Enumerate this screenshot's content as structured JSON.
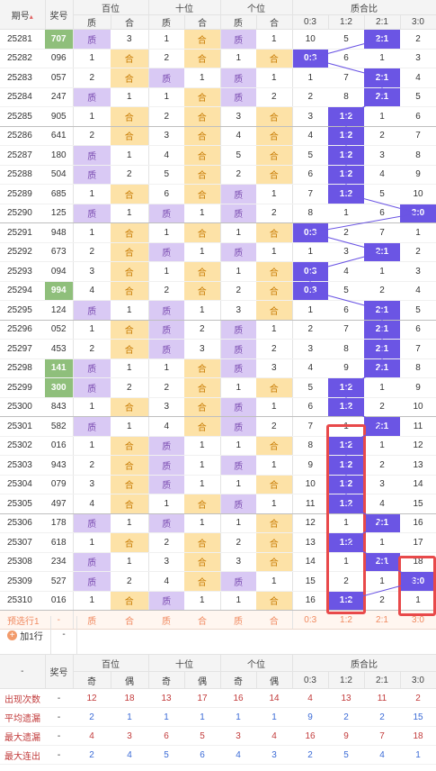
{
  "header": {
    "period_label": "期号",
    "sort_icon": "sort-arrows-icon",
    "prize_label": "奖号",
    "groups": [
      "百位",
      "十位",
      "个位",
      "质合比"
    ],
    "sub_labels": [
      "质",
      "合",
      "质",
      "合",
      "质",
      "合",
      "0:3",
      "1:2",
      "2:1",
      "3:0"
    ]
  },
  "rows": [
    {
      "issue": "25281",
      "num": "707",
      "win": true,
      "b": [
        0,
        3
      ],
      "s": [
        1,
        0
      ],
      "g": [
        0,
        1
      ],
      "z": [
        10,
        5,
        0,
        2
      ],
      "q": 2,
      "qt": "2:1"
    },
    {
      "issue": "25282",
      "num": "096",
      "win": false,
      "b": [
        1,
        0
      ],
      "s": [
        2,
        0
      ],
      "g": [
        1,
        0
      ],
      "z": [
        0,
        6,
        1,
        3
      ],
      "q": 0,
      "qt": "0:3"
    },
    {
      "issue": "25283",
      "num": "057",
      "win": false,
      "b": [
        2,
        0
      ],
      "s": [
        0,
        1
      ],
      "g": [
        0,
        1
      ],
      "z": [
        1,
        7,
        0,
        4
      ],
      "q": 2,
      "qt": "2:1"
    },
    {
      "issue": "25284",
      "num": "247",
      "win": false,
      "b": [
        0,
        1
      ],
      "s": [
        1,
        0
      ],
      "g": [
        0,
        2
      ],
      "z": [
        2,
        8,
        0,
        5
      ],
      "q": 2,
      "qt": "2:1"
    },
    {
      "issue": "25285",
      "num": "905",
      "win": false,
      "b": [
        1,
        0
      ],
      "s": [
        2,
        0
      ],
      "g": [
        3,
        0
      ],
      "z": [
        3,
        0,
        1,
        6
      ],
      "q": 1,
      "qt": "1:2"
    },
    {
      "issue": "25286",
      "num": "641",
      "win": false,
      "b": [
        2,
        0
      ],
      "s": [
        3,
        0
      ],
      "g": [
        4,
        0
      ],
      "z": [
        4,
        0,
        2,
        7
      ],
      "q": 1,
      "qt": "1:2"
    },
    {
      "issue": "25287",
      "num": "180",
      "win": false,
      "b": [
        0,
        1
      ],
      "s": [
        4,
        0
      ],
      "g": [
        5,
        0
      ],
      "z": [
        5,
        0,
        3,
        8
      ],
      "q": 1,
      "qt": "1:2"
    },
    {
      "issue": "25288",
      "num": "504",
      "win": false,
      "b": [
        0,
        2
      ],
      "s": [
        5,
        0
      ],
      "g": [
        2,
        0
      ],
      "z": [
        6,
        0,
        4,
        9
      ],
      "q": 1,
      "qt": "1:2"
    },
    {
      "issue": "25289",
      "num": "685",
      "win": false,
      "b": [
        1,
        0
      ],
      "s": [
        6,
        0
      ],
      "g": [
        0,
        1
      ],
      "z": [
        7,
        0,
        5,
        10
      ],
      "q": 1,
      "qt": "1:2"
    },
    {
      "issue": "25290",
      "num": "125",
      "win": false,
      "b": [
        0,
        1
      ],
      "s": [
        0,
        1
      ],
      "g": [
        0,
        2
      ],
      "z": [
        8,
        1,
        6,
        0
      ],
      "q": 3,
      "qt": "3:0"
    },
    {
      "issue": "25291",
      "num": "948",
      "win": false,
      "b": [
        1,
        0
      ],
      "s": [
        1,
        0
      ],
      "g": [
        1,
        0
      ],
      "z": [
        0,
        2,
        7,
        1
      ],
      "q": 0,
      "qt": "0:3"
    },
    {
      "issue": "25292",
      "num": "673",
      "win": false,
      "b": [
        2,
        0
      ],
      "s": [
        0,
        1
      ],
      "g": [
        0,
        1
      ],
      "z": [
        1,
        3,
        0,
        2
      ],
      "q": 2,
      "qt": "2:1"
    },
    {
      "issue": "25293",
      "num": "094",
      "win": false,
      "b": [
        3,
        0
      ],
      "s": [
        1,
        0
      ],
      "g": [
        1,
        0
      ],
      "z": [
        0,
        4,
        1,
        3
      ],
      "q": 0,
      "qt": "0:3"
    },
    {
      "issue": "25294",
      "num": "994",
      "win": true,
      "b": [
        4,
        0
      ],
      "s": [
        2,
        0
      ],
      "g": [
        2,
        0
      ],
      "z": [
        0,
        5,
        2,
        4
      ],
      "q": 0,
      "qt": "0:3"
    },
    {
      "issue": "25295",
      "num": "124",
      "win": false,
      "b": [
        0,
        1
      ],
      "s": [
        0,
        1
      ],
      "g": [
        3,
        0
      ],
      "z": [
        1,
        6,
        0,
        5
      ],
      "q": 2,
      "qt": "2:1"
    },
    {
      "issue": "25296",
      "num": "052",
      "win": false,
      "b": [
        1,
        0
      ],
      "s": [
        0,
        2
      ],
      "g": [
        0,
        1
      ],
      "z": [
        2,
        7,
        0,
        6
      ],
      "q": 2,
      "qt": "2:1"
    },
    {
      "issue": "25297",
      "num": "453",
      "win": false,
      "b": [
        2,
        0
      ],
      "s": [
        0,
        3
      ],
      "g": [
        0,
        2
      ],
      "z": [
        3,
        8,
        0,
        7
      ],
      "q": 2,
      "qt": "2:1"
    },
    {
      "issue": "25298",
      "num": "141",
      "win": true,
      "b": [
        0,
        1
      ],
      "s": [
        1,
        0
      ],
      "g": [
        0,
        3
      ],
      "z": [
        4,
        9,
        0,
        8
      ],
      "q": 2,
      "qt": "2:1"
    },
    {
      "issue": "25299",
      "num": "300",
      "win": true,
      "b": [
        0,
        2
      ],
      "s": [
        2,
        0
      ],
      "g": [
        1,
        0
      ],
      "z": [
        5,
        0,
        1,
        9
      ],
      "q": 1,
      "qt": "1:2"
    },
    {
      "issue": "25300",
      "num": "843",
      "win": false,
      "b": [
        1,
        0
      ],
      "s": [
        3,
        0
      ],
      "g": [
        0,
        1
      ],
      "z": [
        6,
        0,
        2,
        10
      ],
      "q": 1,
      "qt": "1:2"
    },
    {
      "issue": "25301",
      "num": "582",
      "win": false,
      "b": [
        0,
        1
      ],
      "s": [
        4,
        0
      ],
      "g": [
        0,
        2
      ],
      "z": [
        7,
        1,
        0,
        11
      ],
      "q": 2,
      "qt": "2:1"
    },
    {
      "issue": "25302",
      "num": "016",
      "win": false,
      "b": [
        1,
        0
      ],
      "s": [
        0,
        1
      ],
      "g": [
        1,
        0
      ],
      "z": [
        8,
        0,
        1,
        12
      ],
      "q": 1,
      "qt": "1:2"
    },
    {
      "issue": "25303",
      "num": "943",
      "win": false,
      "b": [
        2,
        0
      ],
      "s": [
        0,
        1
      ],
      "g": [
        0,
        1
      ],
      "z": [
        9,
        0,
        2,
        13
      ],
      "q": 1,
      "qt": "1:2"
    },
    {
      "issue": "25304",
      "num": "079",
      "win": false,
      "b": [
        3,
        0
      ],
      "s": [
        0,
        1
      ],
      "g": [
        1,
        0
      ],
      "z": [
        10,
        0,
        3,
        14
      ],
      "q": 1,
      "qt": "1:2"
    },
    {
      "issue": "25305",
      "num": "497",
      "win": false,
      "b": [
        4,
        0
      ],
      "s": [
        1,
        0
      ],
      "g": [
        0,
        1
      ],
      "z": [
        11,
        0,
        4,
        15
      ],
      "q": 1,
      "qt": "1:2"
    },
    {
      "issue": "25306",
      "num": "178",
      "win": false,
      "b": [
        0,
        1
      ],
      "s": [
        0,
        1
      ],
      "g": [
        1,
        0
      ],
      "z": [
        12,
        1,
        0,
        16
      ],
      "q": 2,
      "qt": "2:1"
    },
    {
      "issue": "25307",
      "num": "618",
      "win": false,
      "b": [
        1,
        0
      ],
      "s": [
        2,
        0
      ],
      "g": [
        2,
        0
      ],
      "z": [
        13,
        0,
        1,
        17
      ],
      "q": 1,
      "qt": "1:2"
    },
    {
      "issue": "25308",
      "num": "234",
      "win": false,
      "b": [
        0,
        1
      ],
      "s": [
        3,
        0
      ],
      "g": [
        3,
        0
      ],
      "z": [
        14,
        1,
        0,
        18
      ],
      "q": 2,
      "qt": "2:1"
    },
    {
      "issue": "25309",
      "num": "527",
      "win": false,
      "b": [
        0,
        2
      ],
      "s": [
        4,
        0
      ],
      "g": [
        0,
        1
      ],
      "z": [
        15,
        2,
        1,
        0
      ],
      "q": 3,
      "qt": "3:0"
    },
    {
      "issue": "25310",
      "num": "016",
      "win": false,
      "b": [
        1,
        0
      ],
      "s": [
        0,
        1
      ],
      "g": [
        1,
        0
      ],
      "z": [
        16,
        0,
        2,
        1
      ],
      "q": 1,
      "qt": "1:2"
    }
  ],
  "predict": {
    "label": "预选行1",
    "dash": "-",
    "cells": [
      "质",
      "合",
      "质",
      "合",
      "质",
      "合",
      "0:3",
      "1:2",
      "2:1",
      "3:0"
    ]
  },
  "add_row": {
    "label": "加1行",
    "dash": "-"
  },
  "stats": {
    "dash_left": "-",
    "prize_label": "奖号",
    "groups": [
      "百位",
      "十位",
      "个位",
      "质合比"
    ],
    "sub_labels": [
      "奇",
      "偶",
      "奇",
      "偶",
      "奇",
      "偶",
      "0:3",
      "1:2",
      "2:1",
      "3:0"
    ],
    "rows": [
      {
        "label": "出现次数",
        "dash": "-",
        "vals": [
          "12",
          "18",
          "13",
          "17",
          "16",
          "14",
          "4",
          "13",
          "11",
          "2"
        ]
      },
      {
        "label": "平均遗漏",
        "dash": "-",
        "vals": [
          "2",
          "1",
          "1",
          "1",
          "1",
          "1",
          "9",
          "2",
          "2",
          "15"
        ]
      },
      {
        "label": "最大遗漏",
        "dash": "-",
        "vals": [
          "4",
          "3",
          "6",
          "5",
          "3",
          "4",
          "16",
          "9",
          "7",
          "18"
        ]
      },
      {
        "label": "最大连出",
        "dash": "-",
        "vals": [
          "2",
          "4",
          "5",
          "6",
          "4",
          "3",
          "2",
          "5",
          "4",
          "1"
        ]
      }
    ]
  },
  "colors": {
    "prime_cell": "#d9c9f4",
    "composite_cell": "#fde2a7",
    "ratio_hit": "#6b55e4",
    "winning_number": "#8fbf7b",
    "highlight_border": "#e8494a"
  }
}
